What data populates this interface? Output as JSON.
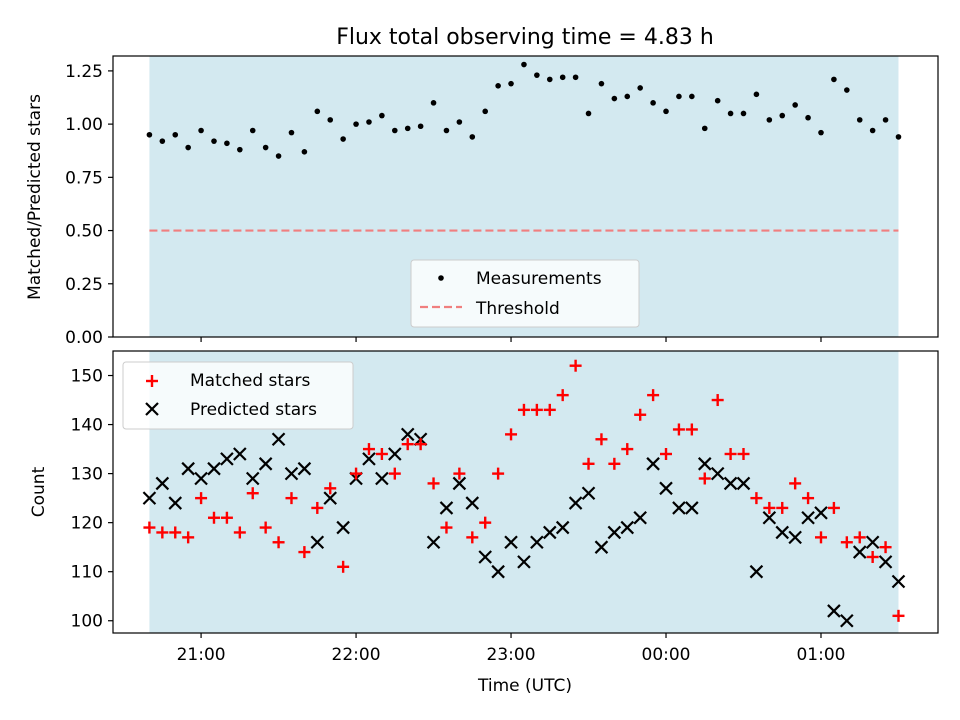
{
  "chart_data": [
    {
      "type": "scatter",
      "title": "Flux total observing time = 4.83 h",
      "xlabel": "",
      "ylabel": "Matched/Predicted stars",
      "ylim": [
        0,
        1.32
      ],
      "yticks": [
        0.0,
        0.25,
        0.5,
        0.75,
        1.0,
        1.25
      ],
      "ytick_labels": [
        "0.00",
        "0.25",
        "0.50",
        "0.75",
        "1.00",
        "1.25"
      ],
      "observing_window": [
        "20:40",
        "01:30"
      ],
      "threshold": 0.5,
      "legend": {
        "placement": "lower center",
        "entries": [
          "Measurements",
          "Threshold"
        ]
      },
      "series": [
        {
          "name": "Measurements",
          "x": [
            "20:40",
            "20:45",
            "20:50",
            "20:55",
            "21:00",
            "21:05",
            "21:10",
            "21:15",
            "21:20",
            "21:25",
            "21:30",
            "21:35",
            "21:40",
            "21:45",
            "21:50",
            "21:55",
            "22:00",
            "22:05",
            "22:10",
            "22:15",
            "22:20",
            "22:25",
            "22:30",
            "22:35",
            "22:40",
            "22:45",
            "22:50",
            "22:55",
            "23:00",
            "23:05",
            "23:10",
            "23:15",
            "23:20",
            "23:25",
            "23:30",
            "23:35",
            "23:40",
            "23:45",
            "23:50",
            "23:55",
            "00:00",
            "00:05",
            "00:10",
            "00:15",
            "00:20",
            "00:25",
            "00:30",
            "00:35",
            "00:40",
            "00:45",
            "00:50",
            "00:55",
            "01:00",
            "01:05",
            "01:10",
            "01:15",
            "01:20",
            "01:25",
            "01:30"
          ],
          "y": [
            0.95,
            0.92,
            0.95,
            0.89,
            0.97,
            0.92,
            0.91,
            0.88,
            0.97,
            0.89,
            0.85,
            0.96,
            0.87,
            1.06,
            1.02,
            0.93,
            1.0,
            1.01,
            1.04,
            0.97,
            0.98,
            0.99,
            1.1,
            0.97,
            1.01,
            0.94,
            1.06,
            1.18,
            1.19,
            1.28,
            1.23,
            1.21,
            1.22,
            1.22,
            1.05,
            1.19,
            1.12,
            1.13,
            1.17,
            1.1,
            1.06,
            1.13,
            1.13,
            0.98,
            1.11,
            1.05,
            1.05,
            1.14,
            1.02,
            1.04,
            1.09,
            1.03,
            0.96,
            1.21,
            1.16,
            1.02,
            0.97,
            1.02,
            0.94
          ]
        },
        {
          "name": "Threshold",
          "value": 0.5
        }
      ],
      "colors": {
        "measurements": "#000000",
        "threshold": "#f07f7f",
        "window": "#d3e9f0"
      }
    },
    {
      "type": "scatter",
      "title": "",
      "xlabel": "Time (UTC)",
      "ylabel": "Count",
      "ylim": [
        97.5,
        155
      ],
      "yticks": [
        100,
        110,
        120,
        130,
        140,
        150
      ],
      "xtick_labels": [
        "21:00",
        "22:00",
        "23:00",
        "00:00",
        "01:00"
      ],
      "observing_window": [
        "20:40",
        "01:30"
      ],
      "legend": {
        "placement": "upper left",
        "entries": [
          "Matched stars",
          "Predicted stars"
        ]
      },
      "series": [
        {
          "name": "Matched stars",
          "x": [
            "20:40",
            "20:45",
            "20:50",
            "20:55",
            "21:00",
            "21:05",
            "21:10",
            "21:15",
            "21:20",
            "21:25",
            "21:30",
            "21:35",
            "21:40",
            "21:45",
            "21:50",
            "21:55",
            "22:00",
            "22:05",
            "22:10",
            "22:15",
            "22:20",
            "22:25",
            "22:30",
            "22:35",
            "22:40",
            "22:45",
            "22:50",
            "22:55",
            "23:00",
            "23:05",
            "23:10",
            "23:15",
            "23:20",
            "23:25",
            "23:30",
            "23:35",
            "23:40",
            "23:45",
            "23:50",
            "23:55",
            "00:00",
            "00:05",
            "00:10",
            "00:15",
            "00:20",
            "00:25",
            "00:30",
            "00:35",
            "00:40",
            "00:45",
            "00:50",
            "00:55",
            "01:00",
            "01:05",
            "01:10",
            "01:15",
            "01:20",
            "01:25",
            "01:30"
          ],
          "y": [
            119,
            118,
            118,
            117,
            125,
            121,
            121,
            118,
            126,
            119,
            116,
            125,
            114,
            123,
            127,
            111,
            130,
            135,
            134,
            130,
            136,
            136,
            128,
            119,
            130,
            117,
            120,
            130,
            138,
            143,
            143,
            143,
            146,
            152,
            132,
            137,
            132,
            135,
            142,
            146,
            134,
            139,
            139,
            129,
            145,
            134,
            134,
            125,
            123,
            123,
            128,
            125,
            117,
            123,
            116,
            117,
            113,
            115,
            101
          ]
        },
        {
          "name": "Predicted stars",
          "x": [
            "20:40",
            "20:45",
            "20:50",
            "20:55",
            "21:00",
            "21:05",
            "21:10",
            "21:15",
            "21:20",
            "21:25",
            "21:30",
            "21:35",
            "21:40",
            "21:45",
            "21:50",
            "21:55",
            "22:00",
            "22:05",
            "22:10",
            "22:15",
            "22:20",
            "22:25",
            "22:30",
            "22:35",
            "22:40",
            "22:45",
            "22:50",
            "22:55",
            "23:00",
            "23:05",
            "23:10",
            "23:15",
            "23:20",
            "23:25",
            "23:30",
            "23:35",
            "23:40",
            "23:45",
            "23:50",
            "23:55",
            "00:00",
            "00:05",
            "00:10",
            "00:15",
            "00:20",
            "00:25",
            "00:30",
            "00:35",
            "00:40",
            "00:45",
            "00:50",
            "00:55",
            "01:00",
            "01:05",
            "01:10",
            "01:15",
            "01:20",
            "01:25",
            "01:30"
          ],
          "y": [
            125,
            128,
            124,
            131,
            129,
            131,
            133,
            134,
            129,
            132,
            137,
            130,
            131,
            116,
            125,
            119,
            129,
            133,
            129,
            134,
            138,
            137,
            116,
            123,
            128,
            124,
            113,
            110,
            116,
            112,
            116,
            118,
            119,
            124,
            126,
            115,
            118,
            119,
            121,
            132,
            127,
            123,
            123,
            132,
            130,
            128,
            128,
            110,
            121,
            118,
            117,
            121,
            122,
            102,
            100,
            114,
            116,
            112,
            108
          ]
        }
      ],
      "colors": {
        "matched": "#ff0000",
        "predicted": "#000000",
        "window": "#d3e9f0"
      }
    }
  ]
}
